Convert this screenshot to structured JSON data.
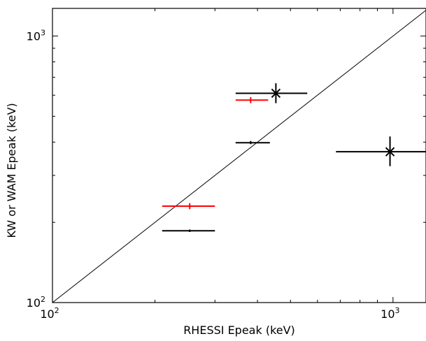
{
  "chart_data": {
    "type": "scatter",
    "title": "",
    "xlabel": "RHESSI Epeak (keV)",
    "ylabel": "KW or WAM Epeak (keV)",
    "xscale": "log",
    "yscale": "log",
    "xlim": [
      100,
      1250
    ],
    "ylim": [
      100,
      1270
    ],
    "xticks": [
      {
        "value": 100,
        "base": "10",
        "exp": "2"
      },
      {
        "value": 1000,
        "base": "10",
        "exp": "3"
      }
    ],
    "yticks": [
      {
        "value": 100,
        "base": "10",
        "exp": "2"
      },
      {
        "value": 1000,
        "base": "10",
        "exp": "3"
      }
    ],
    "grid": false,
    "legend": "none",
    "reference_line": {
      "label": "y = x",
      "color": "#000000"
    },
    "series": [
      {
        "color": "#000000",
        "points": [
          {
            "x": 253,
            "y": 186,
            "xerr": [
              210,
              300
            ],
            "yerr": [
              184,
              188
            ],
            "marker": "+"
          },
          {
            "x": 382,
            "y": 398,
            "xerr": [
              345,
              435
            ],
            "yerr": [
              393,
              404
            ],
            "marker": "+"
          },
          {
            "x": 453,
            "y": 610,
            "xerr": [
              345,
              560
            ],
            "yerr": [
              560,
              665
            ],
            "marker": "x"
          },
          {
            "x": 980,
            "y": 368,
            "xerr": [
              680,
              1250
            ],
            "yerr": [
              325,
              420
            ],
            "marker": "x"
          }
        ]
      },
      {
        "color": "#ff0000",
        "points": [
          {
            "x": 253,
            "y": 230,
            "xerr": [
              210,
              300
            ],
            "yerr": [
              224,
              236
            ],
            "marker": "+"
          },
          {
            "x": 382,
            "y": 575,
            "xerr": [
              345,
              430
            ],
            "yerr": [
              560,
              590
            ],
            "marker": "+"
          }
        ]
      }
    ]
  }
}
